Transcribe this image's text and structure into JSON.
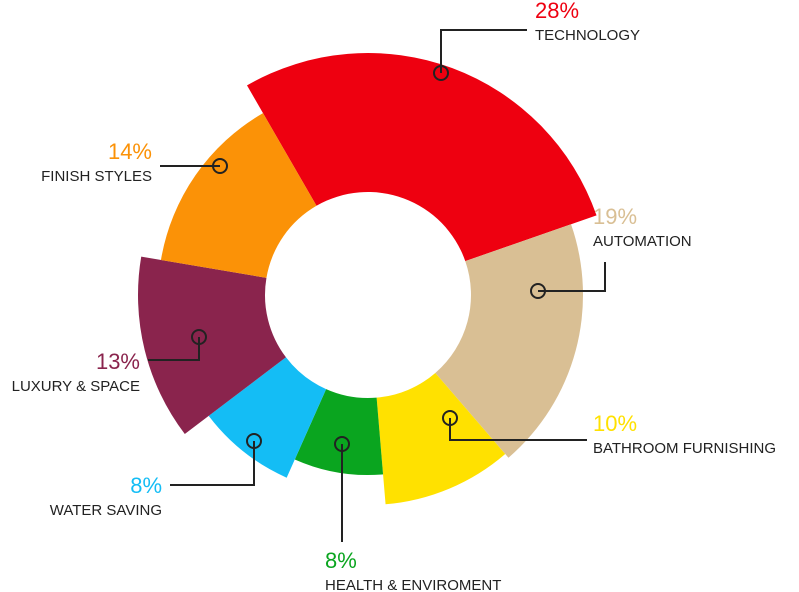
{
  "chart_data": {
    "type": "pie",
    "categories": [
      "TECHNOLOGY",
      "AUTOMATION",
      "BATHROOM FURNISHING",
      "HEALTH & ENVIROMENT",
      "WATER SAVING",
      "LUXURY & SPACE",
      "FINISH STYLES"
    ],
    "values": [
      28,
      19,
      10,
      8,
      8,
      13,
      14
    ],
    "value_labels": [
      "28%",
      "19%",
      "10%",
      "8%",
      "8%",
      "13%",
      "14%"
    ],
    "colors": [
      "#ee0010",
      "#d9bf94",
      "#ffe100",
      "#0aa51f",
      "#14bdf5",
      "#8a244d",
      "#fb9207"
    ]
  }
}
